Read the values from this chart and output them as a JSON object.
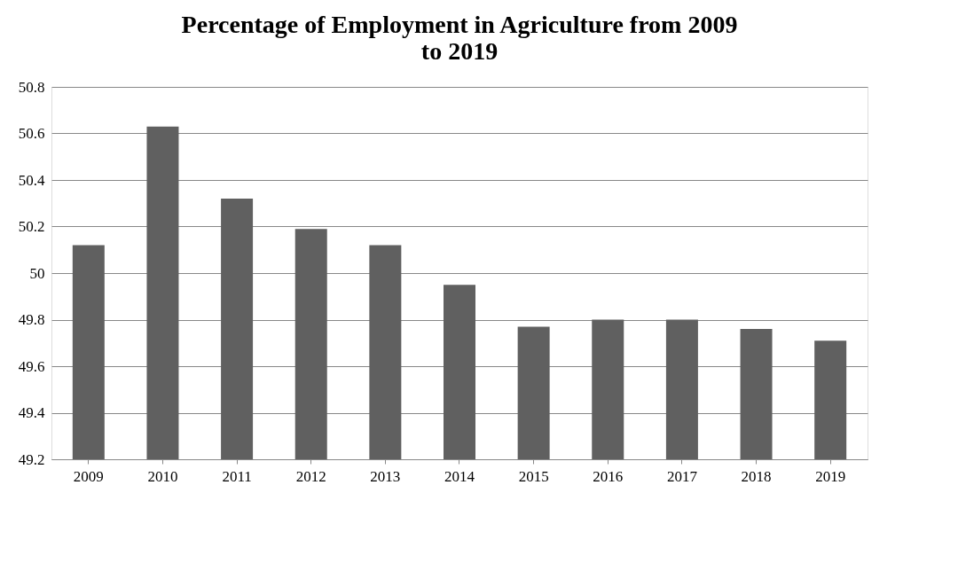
{
  "chart_data": {
    "type": "bar",
    "title": "Percentage of Employment in Agriculture from 2009\nto 2019",
    "categories": [
      "2009",
      "2010",
      "2011",
      "2012",
      "2013",
      "2014",
      "2015",
      "2016",
      "2017",
      "2018",
      "2019"
    ],
    "values": [
      50.12,
      50.63,
      50.32,
      50.19,
      50.12,
      49.95,
      49.77,
      49.8,
      49.8,
      49.76,
      49.71
    ],
    "color": "#606060",
    "ylim": [
      49.2,
      50.8
    ],
    "yticks": [
      49.2,
      49.4,
      49.6,
      49.8,
      50,
      50.2,
      50.4,
      50.6,
      50.8
    ],
    "grid": true
  }
}
